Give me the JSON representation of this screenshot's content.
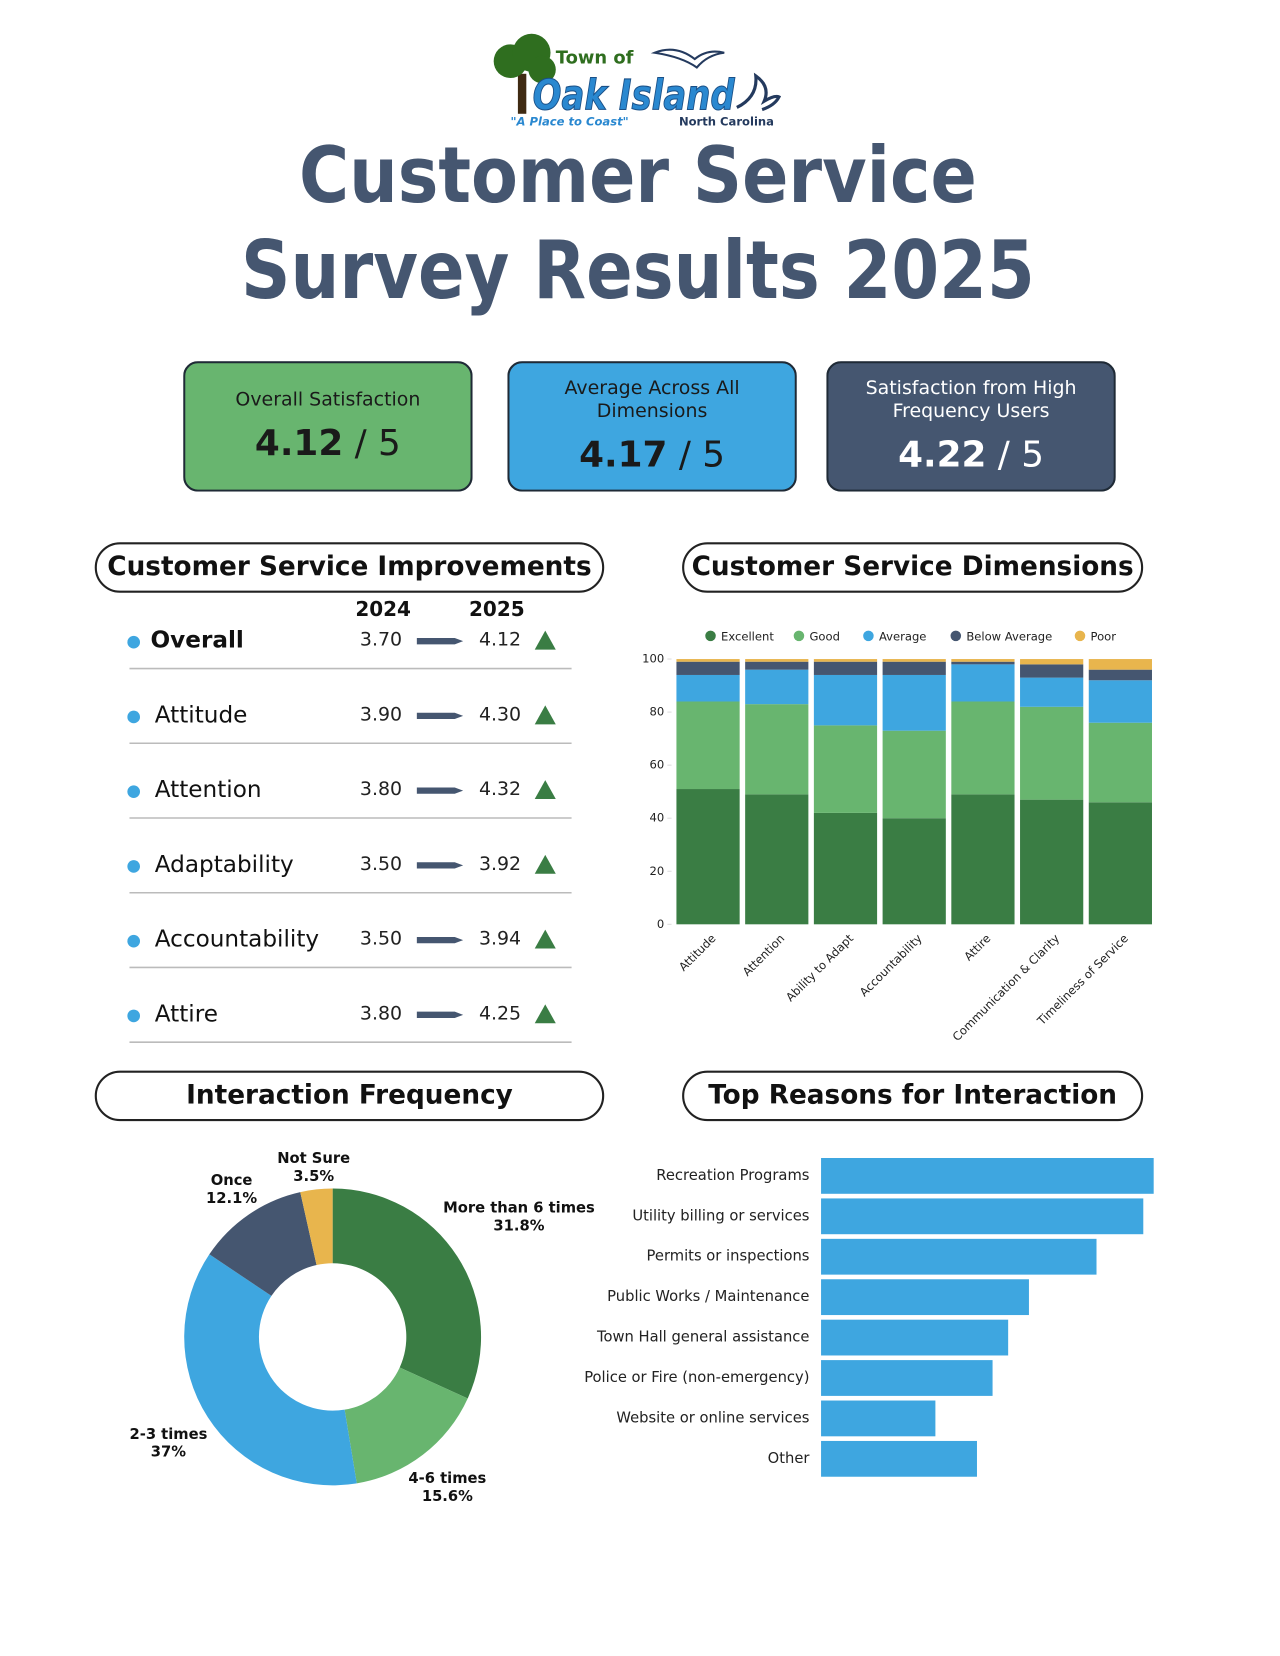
{
  "header": {
    "logo_top": "Town of",
    "logo_name": "Oak Island",
    "slogan": "\"A Place to Coast\"",
    "state": "North Carolina",
    "title_line1": "Customer Service",
    "title_line2": "Survey Results 2025"
  },
  "kpis": [
    {
      "label": "Overall Satisfaction",
      "value": 4.12,
      "scale": "/ 5"
    },
    {
      "label": "Average Across All Dimensions",
      "value": 4.17,
      "scale": "/ 5"
    },
    {
      "label": "Satisfaction from High Frequency Users",
      "value": 4.22,
      "scale": "/ 5"
    }
  ],
  "improvements": {
    "title": "Customer Service Improvements",
    "columns": [
      "2024",
      "2025"
    ],
    "rows": [
      [
        "Overall",
        "3.70",
        "4.12"
      ],
      [
        "Attitude",
        "3.90",
        "4.30"
      ],
      [
        "Attention",
        "3.80",
        "4.32"
      ],
      [
        "Adaptability",
        "3.50",
        "3.92"
      ],
      [
        "Accountability",
        "3.50",
        "3.94"
      ],
      [
        "Attire",
        "3.80",
        "4.25"
      ]
    ]
  },
  "chart_data": [
    {
      "type": "stacked_bar",
      "title": "Customer Service Dimensions",
      "categories": [
        "Attitude",
        "Attention",
        "Ability to Adapt",
        "Accountability",
        "Attire",
        "Communication & Clarity",
        "Timeliness of Service"
      ],
      "series": [
        {
          "name": "Excellent",
          "color": "#3a7d44",
          "values": [
            51,
            49,
            42,
            40,
            49,
            47,
            46
          ]
        },
        {
          "name": "Good",
          "color": "#68b56f",
          "values": [
            33,
            34,
            33,
            33,
            35,
            35,
            30
          ]
        },
        {
          "name": "Average",
          "color": "#3ea6e0",
          "values": [
            10,
            13,
            19,
            21,
            14,
            11,
            16
          ]
        },
        {
          "name": "Below Average",
          "color": "#455670",
          "values": [
            5,
            3,
            5,
            5,
            1,
            5,
            4
          ]
        },
        {
          "name": "Poor",
          "color": "#e8b54d",
          "values": [
            1,
            1,
            1,
            1,
            1,
            2,
            4
          ]
        }
      ],
      "ylim": [
        0,
        100
      ],
      "yticks": [
        0,
        20,
        40,
        60,
        80,
        100
      ],
      "legend": "top"
    },
    {
      "type": "donut",
      "title": "Interaction Frequency",
      "categories": [
        "More than 6 times",
        "4-6 times",
        "2-3 times",
        "Once",
        "Not Sure"
      ],
      "values": [
        31.8,
        15.6,
        37,
        12.1,
        3.5
      ],
      "value_labels": [
        "31.8%",
        "15.6%",
        "37%",
        "12.1%",
        "3.5%"
      ],
      "colors": [
        "#3a7d44",
        "#68b56f",
        "#3ea6e0",
        "#455670",
        "#e8b54d"
      ]
    },
    {
      "type": "hbar",
      "title": "Top Reasons for Interaction",
      "categories": [
        "Recreation Programs",
        "Utility billing or services",
        "Permits or inspections",
        "Public Works / Maintenance",
        "Town Hall general assistance",
        "Police or Fire (non-emergency)",
        "Website or online services",
        "Other"
      ],
      "values": [
        64,
        62,
        53,
        40,
        36,
        33,
        22,
        30
      ],
      "color": "#3ea6e0",
      "xlim": [
        0,
        64
      ]
    }
  ]
}
